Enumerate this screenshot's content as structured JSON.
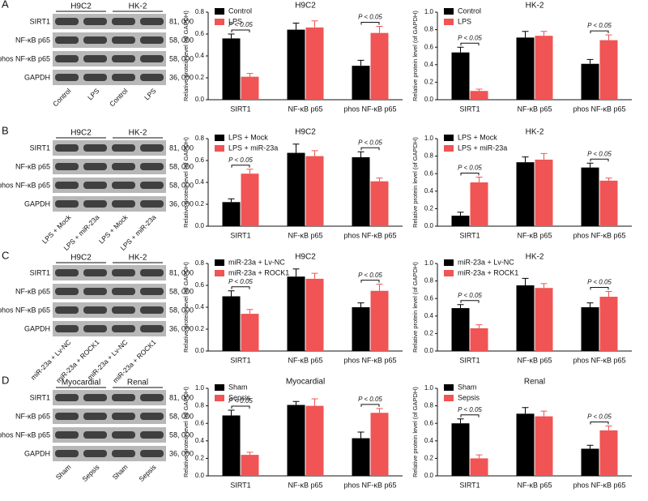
{
  "panel_labels": [
    "A",
    "B",
    "C",
    "D"
  ],
  "blots": [
    {
      "groups": [
        "H9C2",
        "HK-2"
      ],
      "proteins": [
        "SIRT1",
        "NF-κB p65",
        "phos NF-κB p65",
        "GAPDH"
      ],
      "weights": [
        "81, 000",
        "58, 000",
        "58, 000",
        "36, 000"
      ],
      "lanes": [
        "Control",
        "LPS",
        "Control",
        "LPS"
      ]
    },
    {
      "groups": [
        "H9C2",
        "HK-2"
      ],
      "proteins": [
        "SIRT1",
        "NF-κB p65",
        "phos NF-κB p65",
        "GAPDH"
      ],
      "weights": [
        "81, 000",
        "58, 000",
        "58, 000",
        "36, 000"
      ],
      "lanes": [
        "LPS + Mock",
        "LPS + miR-23a",
        "LPS + Mock",
        "LPS + miR-23a"
      ]
    },
    {
      "groups": [
        "H9C2",
        "HK-2"
      ],
      "proteins": [
        "SIRT1",
        "NF-κB p65",
        "phos NF-κB p65",
        "GAPDH"
      ],
      "weights": [
        "81, 000",
        "58, 000",
        "58, 000",
        "36, 000"
      ],
      "lanes": [
        "miR-23a + Lv-NC",
        "miR-23a + ROCK1",
        "miR-23a + Lv-NC",
        "miR-23a + ROCK1"
      ]
    },
    {
      "groups": [
        "Myocardial",
        "Renal"
      ],
      "proteins": [
        "SIRT1",
        "NF-κB p65",
        "phos NF-κB p65",
        "GAPDH"
      ],
      "weights": [
        "81, 000",
        "58, 000",
        "58, 000",
        "36, 000"
      ],
      "lanes": [
        "Sham",
        "Sepsis",
        "Sham",
        "Sepsis"
      ]
    }
  ],
  "chart_data": [
    {
      "type": "bar",
      "title": "H9C2",
      "y_label": "Relative protein level (of GAPDH)",
      "categories": [
        "SIRT1",
        "NF-κB p65",
        "phos NF-κB p65"
      ],
      "series": [
        {
          "name": "Control",
          "color": "#000000",
          "values": [
            0.56,
            0.64,
            0.31
          ],
          "errors": [
            0.04,
            0.06,
            0.05
          ]
        },
        {
          "name": "LPS",
          "color": "#f05454",
          "values": [
            0.21,
            0.66,
            0.61
          ],
          "errors": [
            0.03,
            0.06,
            0.06
          ]
        }
      ],
      "significance": [
        "P < 0.05",
        null,
        "P < 0.05"
      ],
      "ylim": [
        0,
        0.8
      ],
      "yticks": [
        {
          "value": 0,
          "label": "0.0"
        },
        {
          "value": 0.2,
          "label": "0.2"
        },
        {
          "value": 0.4,
          "label": "0.4"
        },
        {
          "value": 0.6,
          "label": "0.6"
        },
        {
          "value": 0.8,
          "label": "0.8"
        }
      ]
    },
    {
      "type": "bar",
      "title": "HK-2",
      "y_label": "Relative protein level (of GAPDH)",
      "categories": [
        "SIRT1",
        "NF-κB p65",
        "phos NF-κB p65"
      ],
      "series": [
        {
          "name": "Control",
          "color": "#000000",
          "values": [
            0.54,
            0.71,
            0.41
          ],
          "errors": [
            0.06,
            0.07,
            0.05
          ]
        },
        {
          "name": "LPS",
          "color": "#f05454",
          "values": [
            0.1,
            0.73,
            0.68
          ],
          "errors": [
            0.02,
            0.05,
            0.06
          ]
        }
      ],
      "significance": [
        "P < 0.05",
        null,
        "P < 0.05"
      ],
      "ylim": [
        0,
        1.0
      ],
      "yticks": [
        {
          "value": 0,
          "label": "0.0"
        },
        {
          "value": 0.2,
          "label": "0.2"
        },
        {
          "value": 0.4,
          "label": "0.4"
        },
        {
          "value": 0.6,
          "label": "0.6"
        },
        {
          "value": 0.8,
          "label": "0.8"
        },
        {
          "value": 1.0,
          "label": "1.0"
        }
      ]
    },
    {
      "type": "bar",
      "title": "H9C2",
      "y_label": "Relative protein level (of GAPDH)",
      "categories": [
        "SIRT1",
        "NF-κB p65",
        "phos NF-κB p65"
      ],
      "series": [
        {
          "name": "LPS + Mock",
          "color": "#000000",
          "values": [
            0.22,
            0.67,
            0.63
          ],
          "errors": [
            0.03,
            0.08,
            0.05
          ]
        },
        {
          "name": "LPS + miR-23a",
          "color": "#f05454",
          "values": [
            0.48,
            0.64,
            0.41
          ],
          "errors": [
            0.04,
            0.05,
            0.03
          ]
        }
      ],
      "significance": [
        "P < 0.05",
        null,
        "P < 0.05"
      ],
      "ylim": [
        0,
        0.8
      ],
      "yticks": [
        {
          "value": 0,
          "label": "0.0"
        },
        {
          "value": 0.2,
          "label": "0.2"
        },
        {
          "value": 0.4,
          "label": "0.4"
        },
        {
          "value": 0.6,
          "label": "0.6"
        },
        {
          "value": 0.8,
          "label": "0.8"
        }
      ]
    },
    {
      "type": "bar",
      "title": "HK-2",
      "y_label": "Relative protein level (of GAPDH)",
      "categories": [
        "SIRT1",
        "NF-κB p65",
        "phos NF-κB p65"
      ],
      "series": [
        {
          "name": "LPS + Mock",
          "color": "#000000",
          "values": [
            0.12,
            0.73,
            0.67
          ],
          "errors": [
            0.04,
            0.06,
            0.05
          ]
        },
        {
          "name": "LPS + miR-23a",
          "color": "#f05454",
          "values": [
            0.5,
            0.76,
            0.52
          ],
          "errors": [
            0.06,
            0.07,
            0.03
          ]
        }
      ],
      "significance": [
        "P < 0.05",
        null,
        "P < 0.05"
      ],
      "ylim": [
        0,
        1.0
      ],
      "yticks": [
        {
          "value": 0,
          "label": "0.0"
        },
        {
          "value": 0.2,
          "label": "0.2"
        },
        {
          "value": 0.4,
          "label": "0.4"
        },
        {
          "value": 0.6,
          "label": "0.6"
        },
        {
          "value": 0.8,
          "label": "0.8"
        },
        {
          "value": 1.0,
          "label": "1.0"
        }
      ]
    },
    {
      "type": "bar",
      "title": "H9C2",
      "y_label": "Relative protein level (of GAPDH)",
      "categories": [
        "SIRT1",
        "NF-κB p65",
        "phos NF-κB p65"
      ],
      "series": [
        {
          "name": "miR-23a + Lv-NC",
          "color": "#000000",
          "values": [
            0.5,
            0.68,
            0.4
          ],
          "errors": [
            0.05,
            0.07,
            0.04
          ]
        },
        {
          "name": "miR-23a + ROCK1",
          "color": "#f05454",
          "values": [
            0.34,
            0.66,
            0.55
          ],
          "errors": [
            0.04,
            0.05,
            0.06
          ]
        }
      ],
      "significance": [
        "P < 0.05",
        null,
        "P < 0.05"
      ],
      "ylim": [
        0,
        0.8
      ],
      "yticks": [
        {
          "value": 0,
          "label": "0.0"
        },
        {
          "value": 0.2,
          "label": "0.2"
        },
        {
          "value": 0.4,
          "label": "0.4"
        },
        {
          "value": 0.6,
          "label": "0.6"
        },
        {
          "value": 0.8,
          "label": "0.8"
        }
      ]
    },
    {
      "type": "bar",
      "title": "HK-2",
      "y_label": "Relative protein level (of GAPDH)",
      "categories": [
        "SIRT1",
        "NF-κB p65",
        "phos NF-κB p65"
      ],
      "series": [
        {
          "name": "miR-23a + Lv-NC",
          "color": "#000000",
          "values": [
            0.49,
            0.75,
            0.5
          ],
          "errors": [
            0.04,
            0.08,
            0.05
          ]
        },
        {
          "name": "miR-23a + ROCK1",
          "color": "#f05454",
          "values": [
            0.26,
            0.72,
            0.62
          ],
          "errors": [
            0.04,
            0.05,
            0.06
          ]
        }
      ],
      "significance": [
        "P < 0.05",
        null,
        "P < 0.05"
      ],
      "ylim": [
        0,
        1.0
      ],
      "yticks": [
        {
          "value": 0,
          "label": "0.0"
        },
        {
          "value": 0.2,
          "label": "0.2"
        },
        {
          "value": 0.4,
          "label": "0.4"
        },
        {
          "value": 0.6,
          "label": "0.6"
        },
        {
          "value": 0.8,
          "label": "0.8"
        },
        {
          "value": 1.0,
          "label": "1.0"
        }
      ]
    },
    {
      "type": "bar",
      "title": "Myocardial",
      "y_label": "Relative protein level (of GAPDH)",
      "categories": [
        "SIRT1",
        "NF-κB p65",
        "phos NF-κB p65"
      ],
      "series": [
        {
          "name": "Sham",
          "color": "#000000",
          "values": [
            0.69,
            0.81,
            0.43
          ],
          "errors": [
            0.06,
            0.04,
            0.07
          ]
        },
        {
          "name": "Sepsis",
          "color": "#f05454",
          "values": [
            0.24,
            0.8,
            0.72
          ],
          "errors": [
            0.03,
            0.08,
            0.05
          ]
        }
      ],
      "significance": [
        "P < 0.05",
        null,
        "P < 0.05"
      ],
      "ylim": [
        0,
        1.0
      ],
      "yticks": [
        {
          "value": 0,
          "label": "0.0"
        },
        {
          "value": 0.2,
          "label": "0.2"
        },
        {
          "value": 0.4,
          "label": "0.4"
        },
        {
          "value": 0.6,
          "label": "0.6"
        },
        {
          "value": 0.8,
          "label": "0.8"
        },
        {
          "value": 1.0,
          "label": "1.0"
        }
      ]
    },
    {
      "type": "bar",
      "title": "Renal",
      "y_label": "Relative protein level (of GAPDH)",
      "categories": [
        "SIRT1",
        "NF-κB p65",
        "phos NF-κB p65"
      ],
      "series": [
        {
          "name": "Sham",
          "color": "#000000",
          "values": [
            0.6,
            0.71,
            0.31
          ],
          "errors": [
            0.05,
            0.07,
            0.04
          ]
        },
        {
          "name": "Sepsis",
          "color": "#f05454",
          "values": [
            0.2,
            0.68,
            0.52
          ],
          "errors": [
            0.04,
            0.06,
            0.05
          ]
        }
      ],
      "significance": [
        "P < 0.05",
        null,
        "P < 0.05"
      ],
      "ylim": [
        0,
        1.0
      ],
      "yticks": [
        {
          "value": 0,
          "label": "0.0"
        },
        {
          "value": 0.2,
          "label": "0.2"
        },
        {
          "value": 0.4,
          "label": "0.4"
        },
        {
          "value": 0.6,
          "label": "0.6"
        },
        {
          "value": 0.8,
          "label": "0.8"
        },
        {
          "value": 1.0,
          "label": "1.0"
        }
      ]
    }
  ]
}
